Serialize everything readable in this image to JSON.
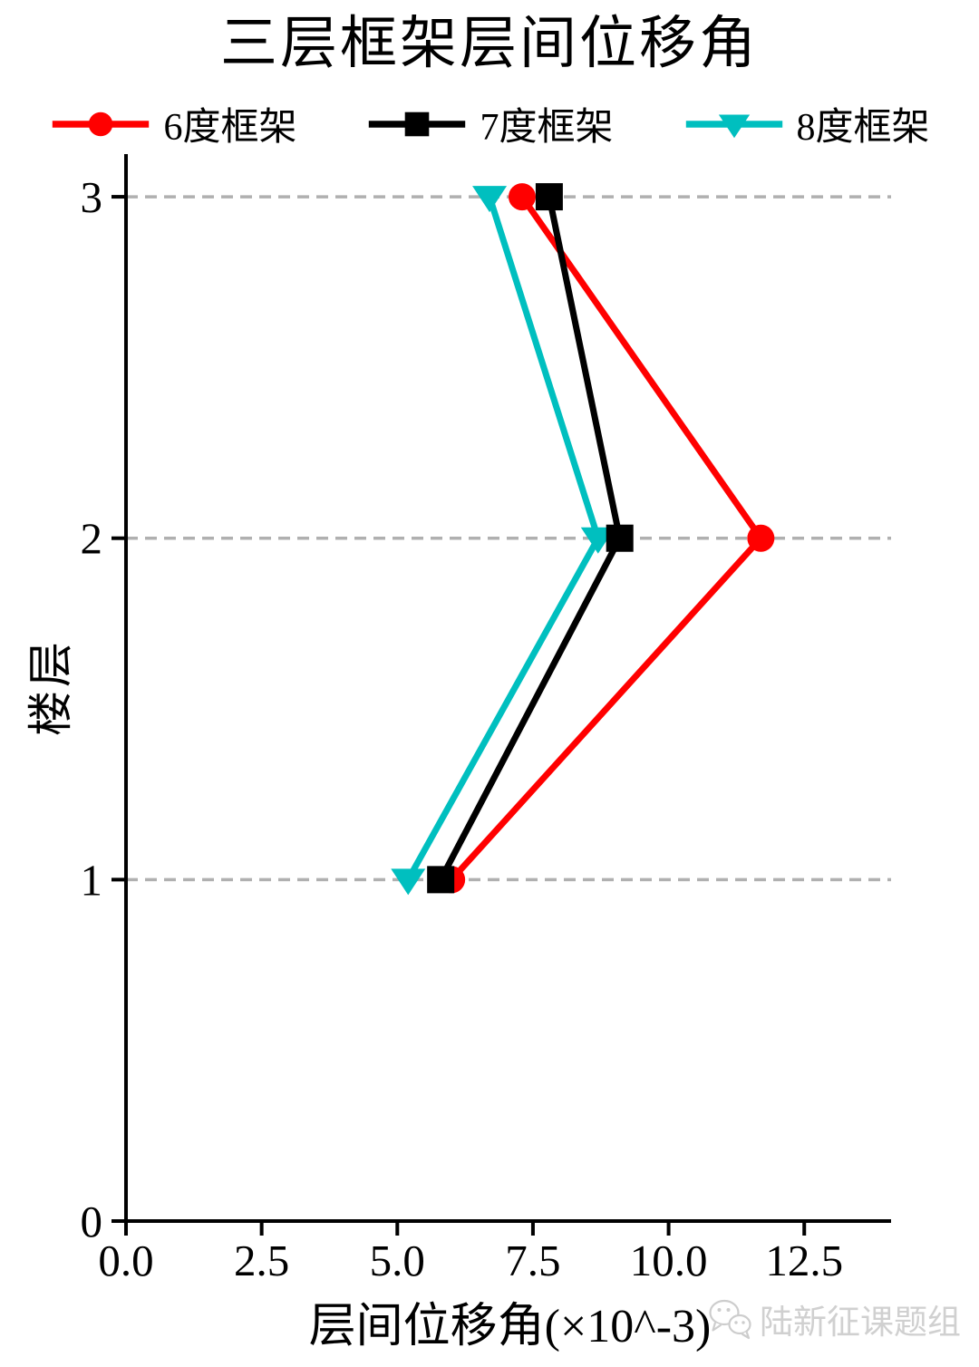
{
  "chart_data": {
    "type": "line",
    "title": "三层框架层间位移角",
    "xlabel": "层间位移角(×10^-3)",
    "ylabel": "楼层",
    "xlim": [
      0,
      14.1
    ],
    "ylim": [
      0,
      3.125
    ],
    "x_ticks": [
      {
        "value": 0,
        "label": "0.0"
      },
      {
        "value": 2.5,
        "label": "2.5"
      },
      {
        "value": 5,
        "label": "5.0"
      },
      {
        "value": 7.5,
        "label": "7.5"
      },
      {
        "value": 10,
        "label": "10.0"
      },
      {
        "value": 12.5,
        "label": "12.5"
      }
    ],
    "y_ticks": [
      {
        "value": 0,
        "label": "0"
      },
      {
        "value": 1,
        "label": "1"
      },
      {
        "value": 2,
        "label": "2"
      },
      {
        "value": 3,
        "label": "3"
      }
    ],
    "gridlines_y": [
      1,
      2,
      3
    ],
    "grid_on": true,
    "grid_color": "#b0b0b0",
    "grid_dash": "13 8",
    "legend_position": "top",
    "draw_order": [
      0,
      2,
      1
    ],
    "series": [
      {
        "name": "6度框架",
        "color": "#ff0000",
        "marker": "circle",
        "x": [
          6.0,
          11.7,
          7.3
        ],
        "y": [
          1,
          2,
          3
        ]
      },
      {
        "name": "7度框架",
        "color": "#000000",
        "marker": "square",
        "x": [
          5.8,
          9.1,
          7.8
        ],
        "y": [
          1,
          2,
          3
        ]
      },
      {
        "name": "8度框架",
        "color": "#00bfbf",
        "marker": "triangle-down",
        "x": [
          5.2,
          8.7,
          6.7
        ],
        "y": [
          1,
          2,
          3
        ]
      }
    ]
  },
  "watermark": {
    "text": "陆新征课题组",
    "icon": "wechat-icon"
  }
}
